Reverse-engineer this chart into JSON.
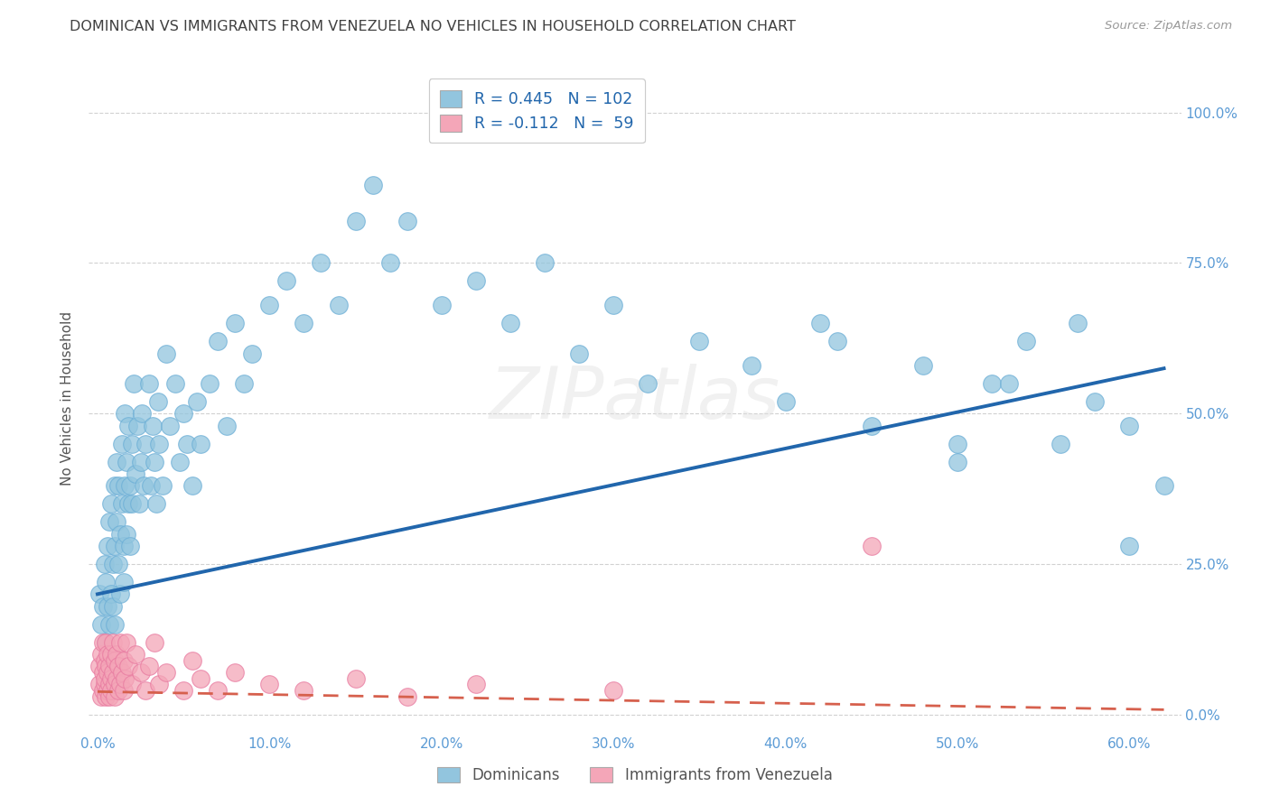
{
  "title": "DOMINICAN VS IMMIGRANTS FROM VENEZUELA NO VEHICLES IN HOUSEHOLD CORRELATION CHART",
  "source": "Source: ZipAtlas.com",
  "xlabel_ticks": [
    "0.0%",
    "10.0%",
    "20.0%",
    "30.0%",
    "40.0%",
    "50.0%",
    "60.0%"
  ],
  "ylabel_ticks_right": [
    "100.0%",
    "75.0%",
    "50.0%",
    "25.0%",
    "0.0%"
  ],
  "xlim": [
    -0.005,
    0.63
  ],
  "ylim": [
    -0.03,
    1.08
  ],
  "legend_label1": "Dominicans",
  "legend_label2": "Immigrants from Venezuela",
  "legend_R1": "R = 0.445",
  "legend_N1": "N = 102",
  "legend_R2": "R = -0.112",
  "legend_N2": "N =  59",
  "watermark": "ZIPatlas",
  "blue_color": "#92c5de",
  "blue_edge_color": "#6baed6",
  "pink_color": "#f4a6b8",
  "pink_edge_color": "#e87aa0",
  "line_blue": "#2166ac",
  "line_pink": "#d6604d",
  "title_color": "#404040",
  "axis_tick_color": "#5b9bd5",
  "ylabel_text": "No Vehicles in Household",
  "blue_scatter_x": [
    0.001,
    0.002,
    0.003,
    0.004,
    0.005,
    0.005,
    0.006,
    0.006,
    0.007,
    0.007,
    0.008,
    0.008,
    0.009,
    0.009,
    0.01,
    0.01,
    0.01,
    0.011,
    0.011,
    0.012,
    0.012,
    0.013,
    0.013,
    0.014,
    0.014,
    0.015,
    0.015,
    0.016,
    0.016,
    0.017,
    0.017,
    0.018,
    0.018,
    0.019,
    0.019,
    0.02,
    0.02,
    0.021,
    0.022,
    0.023,
    0.024,
    0.025,
    0.026,
    0.027,
    0.028,
    0.03,
    0.031,
    0.032,
    0.033,
    0.034,
    0.035,
    0.036,
    0.038,
    0.04,
    0.042,
    0.045,
    0.048,
    0.05,
    0.052,
    0.055,
    0.058,
    0.06,
    0.065,
    0.07,
    0.075,
    0.08,
    0.085,
    0.09,
    0.1,
    0.11,
    0.12,
    0.13,
    0.14,
    0.15,
    0.16,
    0.17,
    0.18,
    0.2,
    0.22,
    0.24,
    0.26,
    0.28,
    0.3,
    0.32,
    0.35,
    0.38,
    0.4,
    0.42,
    0.45,
    0.48,
    0.5,
    0.52,
    0.54,
    0.56,
    0.58,
    0.6,
    0.62,
    0.43,
    0.5,
    0.53,
    0.57,
    0.6
  ],
  "blue_scatter_y": [
    0.2,
    0.15,
    0.18,
    0.25,
    0.12,
    0.22,
    0.28,
    0.18,
    0.15,
    0.32,
    0.2,
    0.35,
    0.25,
    0.18,
    0.38,
    0.28,
    0.15,
    0.42,
    0.32,
    0.25,
    0.38,
    0.3,
    0.2,
    0.45,
    0.35,
    0.28,
    0.22,
    0.5,
    0.38,
    0.42,
    0.3,
    0.35,
    0.48,
    0.38,
    0.28,
    0.45,
    0.35,
    0.55,
    0.4,
    0.48,
    0.35,
    0.42,
    0.5,
    0.38,
    0.45,
    0.55,
    0.38,
    0.48,
    0.42,
    0.35,
    0.52,
    0.45,
    0.38,
    0.6,
    0.48,
    0.55,
    0.42,
    0.5,
    0.45,
    0.38,
    0.52,
    0.45,
    0.55,
    0.62,
    0.48,
    0.65,
    0.55,
    0.6,
    0.68,
    0.72,
    0.65,
    0.75,
    0.68,
    0.82,
    0.88,
    0.75,
    0.82,
    0.68,
    0.72,
    0.65,
    0.75,
    0.6,
    0.68,
    0.55,
    0.62,
    0.58,
    0.52,
    0.65,
    0.48,
    0.58,
    0.42,
    0.55,
    0.62,
    0.45,
    0.52,
    0.48,
    0.38,
    0.62,
    0.45,
    0.55,
    0.65,
    0.28
  ],
  "pink_scatter_x": [
    0.001,
    0.001,
    0.002,
    0.002,
    0.003,
    0.003,
    0.003,
    0.004,
    0.004,
    0.004,
    0.005,
    0.005,
    0.005,
    0.006,
    0.006,
    0.006,
    0.007,
    0.007,
    0.007,
    0.008,
    0.008,
    0.008,
    0.009,
    0.009,
    0.01,
    0.01,
    0.01,
    0.011,
    0.011,
    0.012,
    0.012,
    0.013,
    0.013,
    0.014,
    0.015,
    0.015,
    0.016,
    0.017,
    0.018,
    0.02,
    0.022,
    0.025,
    0.028,
    0.03,
    0.033,
    0.036,
    0.04,
    0.05,
    0.055,
    0.06,
    0.07,
    0.08,
    0.1,
    0.12,
    0.15,
    0.18,
    0.22,
    0.3,
    0.45
  ],
  "pink_scatter_y": [
    0.05,
    0.08,
    0.03,
    0.1,
    0.04,
    0.07,
    0.12,
    0.05,
    0.09,
    0.06,
    0.03,
    0.08,
    0.12,
    0.04,
    0.07,
    0.1,
    0.05,
    0.08,
    0.03,
    0.06,
    0.1,
    0.04,
    0.07,
    0.12,
    0.05,
    0.09,
    0.03,
    0.06,
    0.1,
    0.04,
    0.08,
    0.12,
    0.05,
    0.07,
    0.04,
    0.09,
    0.06,
    0.12,
    0.08,
    0.05,
    0.1,
    0.07,
    0.04,
    0.08,
    0.12,
    0.05,
    0.07,
    0.04,
    0.09,
    0.06,
    0.04,
    0.07,
    0.05,
    0.04,
    0.06,
    0.03,
    0.05,
    0.04,
    0.28
  ],
  "blue_line_x0": 0.0,
  "blue_line_x1": 0.62,
  "blue_line_y0": 0.2,
  "blue_line_y1": 0.575,
  "pink_line_x0": 0.0,
  "pink_line_x1": 0.62,
  "pink_line_y0": 0.038,
  "pink_line_y1": 0.008,
  "yticks": [
    0.0,
    0.25,
    0.5,
    0.75,
    1.0
  ],
  "xticks": [
    0.0,
    0.1,
    0.2,
    0.3,
    0.4,
    0.5,
    0.6
  ]
}
